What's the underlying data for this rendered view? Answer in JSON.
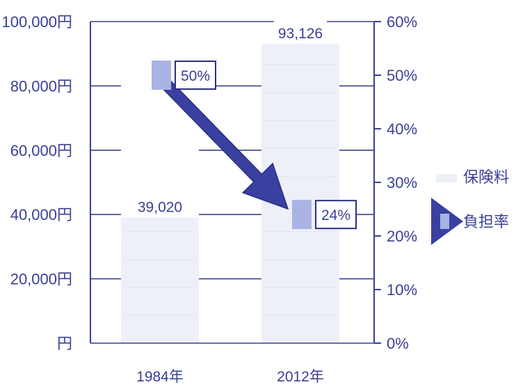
{
  "chart_data": {
    "type": "bar",
    "categories": [
      "1984年",
      "2012年"
    ],
    "series": [
      {
        "name": "保険料",
        "axis": "left",
        "values": [
          39020,
          93126
        ],
        "data_labels": [
          "39,020",
          "93,126"
        ]
      },
      {
        "name": "負担率",
        "axis": "right",
        "values": [
          50,
          24
        ],
        "data_labels": [
          "50%",
          "24%"
        ]
      }
    ],
    "y_left": {
      "range": [
        0,
        100000
      ],
      "ticks": [
        "円",
        "20,000円",
        "40,000円",
        "60,000円",
        "80,000円",
        "100,000円"
      ]
    },
    "y_right": {
      "range": [
        0,
        60
      ],
      "ticks": [
        "0%",
        "10%",
        "20%",
        "30%",
        "40%",
        "50%",
        "60%"
      ]
    },
    "legend": {
      "position": "right",
      "entries": [
        "保険料",
        "負担率"
      ]
    },
    "grid": true,
    "annotation": "arrow from 1984年 負担率 to 2012年 負担率 (decrease)",
    "colors": {
      "axis": "#3a3f96",
      "text": "#3a3f96",
      "bar": "#eef0f8",
      "bar_line": "#dde2f2",
      "marker": "#a9b4e4",
      "arrow": "#3a40a0"
    }
  }
}
